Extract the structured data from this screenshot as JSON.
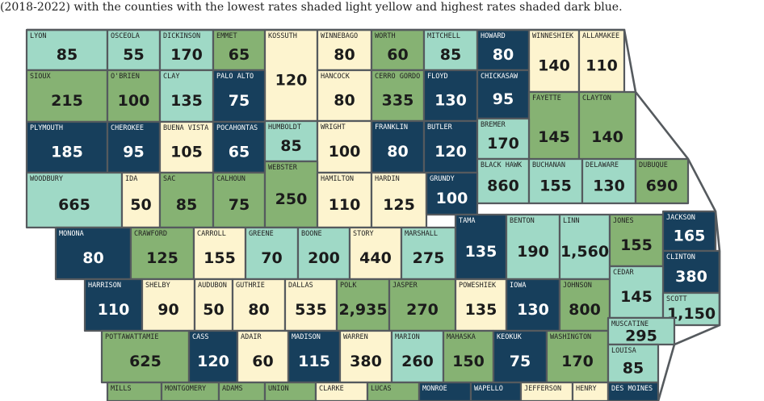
{
  "caption": "(2018-2022) with the counties with the lowest rates shaded light yellow and highest rates shaded dark blue.",
  "colors": {
    "light_yellow": "#fdf4cf",
    "teal": "#9fd9c6",
    "green": "#86b273",
    "dark_blue": "#173f5c"
  },
  "counties": [
    {
      "name": "LYON",
      "value": "85",
      "tier": "teal"
    },
    {
      "name": "OSCEOLA",
      "value": "55",
      "tier": "teal"
    },
    {
      "name": "DICKINSON",
      "value": "170",
      "tier": "teal"
    },
    {
      "name": "EMMET",
      "value": "65",
      "tier": "green"
    },
    {
      "name": "KOSSUTH",
      "value": "120",
      "tier": "light_yellow"
    },
    {
      "name": "WINNEBAGO",
      "value": "80",
      "tier": "light_yellow"
    },
    {
      "name": "WORTH",
      "value": "60",
      "tier": "green"
    },
    {
      "name": "MITCHELL",
      "value": "85",
      "tier": "teal"
    },
    {
      "name": "HOWARD",
      "value": "80",
      "tier": "dark_blue"
    },
    {
      "name": "WINNESHIEK",
      "value": "140",
      "tier": "light_yellow"
    },
    {
      "name": "ALLAMAKEE",
      "value": "110",
      "tier": "light_yellow"
    },
    {
      "name": "SIOUX",
      "value": "215",
      "tier": "green"
    },
    {
      "name": "O'BRIEN",
      "value": "100",
      "tier": "green"
    },
    {
      "name": "CLAY",
      "value": "135",
      "tier": "teal"
    },
    {
      "name": "PALO ALTO",
      "value": "75",
      "tier": "dark_blue"
    },
    {
      "name": "HANCOCK",
      "value": "80",
      "tier": "light_yellow"
    },
    {
      "name": "CERRO GORDO",
      "value": "335",
      "tier": "green"
    },
    {
      "name": "FLOYD",
      "value": "130",
      "tier": "dark_blue"
    },
    {
      "name": "CHICKASAW",
      "value": "95",
      "tier": "dark_blue"
    },
    {
      "name": "FAYETTE",
      "value": "145",
      "tier": "green"
    },
    {
      "name": "CLAYTON",
      "value": "140",
      "tier": "green"
    },
    {
      "name": "PLYMOUTH",
      "value": "185",
      "tier": "dark_blue"
    },
    {
      "name": "CHEROKEE",
      "value": "95",
      "tier": "dark_blue"
    },
    {
      "name": "BUENA VISTA",
      "value": "105",
      "tier": "light_yellow"
    },
    {
      "name": "POCAHONTAS",
      "value": "65",
      "tier": "dark_blue"
    },
    {
      "name": "HUMBOLDT",
      "value": "85",
      "tier": "teal"
    },
    {
      "name": "WRIGHT",
      "value": "100",
      "tier": "light_yellow"
    },
    {
      "name": "FRANKLIN",
      "value": "80",
      "tier": "dark_blue"
    },
    {
      "name": "BUTLER",
      "value": "120",
      "tier": "dark_blue"
    },
    {
      "name": "BREMER",
      "value": "170",
      "tier": "teal"
    },
    {
      "name": "BLACK HAWK",
      "value": "860",
      "tier": "teal"
    },
    {
      "name": "BUCHANAN",
      "value": "155",
      "tier": "teal"
    },
    {
      "name": "DELAWARE",
      "value": "130",
      "tier": "teal"
    },
    {
      "name": "DUBUQUE",
      "value": "690",
      "tier": "green"
    },
    {
      "name": "WOODBURY",
      "value": "665",
      "tier": "teal"
    },
    {
      "name": "IDA",
      "value": "50",
      "tier": "light_yellow"
    },
    {
      "name": "SAC",
      "value": "85",
      "tier": "green"
    },
    {
      "name": "CALHOUN",
      "value": "75",
      "tier": "green"
    },
    {
      "name": "WEBSTER",
      "value": "250",
      "tier": "green"
    },
    {
      "name": "HAMILTON",
      "value": "110",
      "tier": "light_yellow"
    },
    {
      "name": "HARDIN",
      "value": "125",
      "tier": "light_yellow"
    },
    {
      "name": "GRUNDY",
      "value": "100",
      "tier": "dark_blue"
    },
    {
      "name": "MONONA",
      "value": "80",
      "tier": "dark_blue"
    },
    {
      "name": "CRAWFORD",
      "value": "125",
      "tier": "green"
    },
    {
      "name": "CARROLL",
      "value": "155",
      "tier": "light_yellow"
    },
    {
      "name": "GREENE",
      "value": "70",
      "tier": "teal"
    },
    {
      "name": "BOONE",
      "value": "200",
      "tier": "teal"
    },
    {
      "name": "STORY",
      "value": "440",
      "tier": "light_yellow"
    },
    {
      "name": "MARSHALL",
      "value": "275",
      "tier": "teal"
    },
    {
      "name": "TAMA",
      "value": "135",
      "tier": "dark_blue"
    },
    {
      "name": "BENTON",
      "value": "190",
      "tier": "teal"
    },
    {
      "name": "LINN",
      "value": "1,560",
      "tier": "teal"
    },
    {
      "name": "JONES",
      "value": "155",
      "tier": "green"
    },
    {
      "name": "JACKSON",
      "value": "165",
      "tier": "dark_blue"
    },
    {
      "name": "CLINTON",
      "value": "380",
      "tier": "dark_blue"
    },
    {
      "name": "HARRISON",
      "value": "110",
      "tier": "dark_blue"
    },
    {
      "name": "SHELBY",
      "value": "90",
      "tier": "light_yellow"
    },
    {
      "name": "AUDUBON",
      "value": "50",
      "tier": "light_yellow"
    },
    {
      "name": "GUTHRIE",
      "value": "80",
      "tier": "light_yellow"
    },
    {
      "name": "DALLAS",
      "value": "535",
      "tier": "light_yellow"
    },
    {
      "name": "POLK",
      "value": "2,935",
      "tier": "green"
    },
    {
      "name": "JASPER",
      "value": "270",
      "tier": "green"
    },
    {
      "name": "POWESHIEK",
      "value": "135",
      "tier": "light_yellow"
    },
    {
      "name": "IOWA",
      "value": "130",
      "tier": "dark_blue"
    },
    {
      "name": "JOHNSON",
      "value": "800",
      "tier": "green"
    },
    {
      "name": "CEDAR",
      "value": "145",
      "tier": "teal"
    },
    {
      "name": "SCOTT",
      "value": "1,150",
      "tier": "teal"
    },
    {
      "name": "POTTAWATTAMIE",
      "value": "625",
      "tier": "green"
    },
    {
      "name": "CASS",
      "value": "120",
      "tier": "dark_blue"
    },
    {
      "name": "ADAIR",
      "value": "60",
      "tier": "light_yellow"
    },
    {
      "name": "MADISON",
      "value": "115",
      "tier": "dark_blue"
    },
    {
      "name": "WARREN",
      "value": "380",
      "tier": "light_yellow"
    },
    {
      "name": "MARION",
      "value": "260",
      "tier": "teal"
    },
    {
      "name": "MAHASKA",
      "value": "150",
      "tier": "green"
    },
    {
      "name": "KEOKUK",
      "value": "75",
      "tier": "dark_blue"
    },
    {
      "name": "WASHINGTON",
      "value": "170",
      "tier": "green"
    },
    {
      "name": "MUSCATINE",
      "value": "295",
      "tier": "teal"
    },
    {
      "name": "LOUISA",
      "value": "85",
      "tier": "teal"
    },
    {
      "name": "MILLS",
      "value": "",
      "tier": "green"
    },
    {
      "name": "MONTGOMERY",
      "value": "",
      "tier": "green"
    },
    {
      "name": "ADAMS",
      "value": "",
      "tier": "green"
    },
    {
      "name": "UNION",
      "value": "",
      "tier": "green"
    },
    {
      "name": "CLARKE",
      "value": "",
      "tier": "light_yellow"
    },
    {
      "name": "LUCAS",
      "value": "",
      "tier": "green"
    },
    {
      "name": "MONROE",
      "value": "",
      "tier": "dark_blue"
    },
    {
      "name": "WAPELLO",
      "value": "",
      "tier": "dark_blue"
    },
    {
      "name": "JEFFERSON",
      "value": "",
      "tier": "light_yellow"
    },
    {
      "name": "HENRY",
      "value": "",
      "tier": "light_yellow"
    },
    {
      "name": "DES MOINES",
      "value": "",
      "tier": "dark_blue"
    }
  ]
}
